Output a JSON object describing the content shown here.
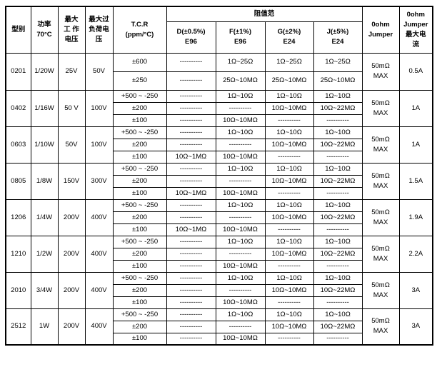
{
  "table": {
    "header": {
      "type": "型别",
      "power": "功率\n70°C",
      "max_working_voltage": "最大\n工 作\n电压",
      "max_overload_voltage": "最大过\n负荷电\n压",
      "tcr": "T.C.R\n(ppm/°C)",
      "resistance_range": "阻值范",
      "tol_d": "D(±0.5%)\nE96",
      "tol_f": "F(±1%)\nE96",
      "tol_g": "G(±2%)\nE24",
      "tol_j": "J(±5%)\nE24",
      "jumper": "0ohm\nJumper",
      "jumper_current": "0ohm\nJumper\n最大电\n流"
    },
    "models": [
      {
        "model": "0201",
        "power": "1/20W",
        "working_voltage": "25V",
        "overload_voltage": "50V",
        "jumper": "50mΩ\nMAX",
        "max_current": "0.5A",
        "rows": [
          {
            "tcr": "±600",
            "d": "----------",
            "f": "1Ω~25Ω",
            "g": "1Ω~25Ω",
            "j": "1Ω~25Ω"
          },
          {
            "tcr": "±250",
            "d": "----------",
            "f": "25Ω~10MΩ",
            "g": "25Ω~10MΩ",
            "j": "25Ω~10MΩ"
          }
        ]
      },
      {
        "model": "0402",
        "power": "1/16W",
        "working_voltage": "50 V",
        "overload_voltage": "100V",
        "jumper": "50mΩ\nMAX",
        "max_current": "1A",
        "rows": [
          {
            "tcr": "+500 ~ -250",
            "d": "----------",
            "f": "1Ω~10Ω",
            "g": "1Ω~10Ω",
            "j": "1Ω~10Ω"
          },
          {
            "tcr": "±200",
            "d": "----------",
            "f": "----------",
            "g": "10Ω~10MΩ",
            "j": "10Ω~22MΩ"
          },
          {
            "tcr": "±100",
            "d": "----------",
            "f": "10Ω~10MΩ",
            "g": "----------",
            "j": "----------"
          }
        ]
      },
      {
        "model": "0603",
        "power": "1/10W",
        "working_voltage": "50V",
        "overload_voltage": "100V",
        "jumper": "50mΩ\nMAX",
        "max_current": "1A",
        "rows": [
          {
            "tcr": "+500 ~ -250",
            "d": "----------",
            "f": "1Ω~10Ω",
            "g": "1Ω~10Ω",
            "j": "1Ω~10Ω"
          },
          {
            "tcr": "±200",
            "d": "----------",
            "f": "----------",
            "g": "10Ω~10MΩ",
            "j": "10Ω~22MΩ"
          },
          {
            "tcr": "±100",
            "d": "10Ω~1MΩ",
            "f": "10Ω~10MΩ",
            "g": "----------",
            "j": "----------"
          }
        ]
      },
      {
        "model": "0805",
        "power": "1/8W",
        "working_voltage": "150V",
        "overload_voltage": "300V",
        "jumper": "50mΩ\nMAX",
        "max_current": "1.5A",
        "rows": [
          {
            "tcr": "+500 ~ -250",
            "d": "----------",
            "f": "1Ω~10Ω",
            "g": "1Ω~10Ω",
            "j": "1Ω~10Ω"
          },
          {
            "tcr": "±200",
            "d": "----------",
            "f": "----------",
            "g": "10Ω~10MΩ",
            "j": "10Ω~22MΩ"
          },
          {
            "tcr": "±100",
            "d": "10Ω~1MΩ",
            "f": "10Ω~10MΩ",
            "g": "----------",
            "j": "----------"
          }
        ]
      },
      {
        "model": "1206",
        "power": "1/4W",
        "working_voltage": "200V",
        "overload_voltage": "400V",
        "jumper": "50mΩ\nMAX",
        "max_current": "1.9A",
        "rows": [
          {
            "tcr": "+500 ~ -250",
            "d": "----------",
            "f": "1Ω~10Ω",
            "g": "1Ω~10Ω",
            "j": "1Ω~10Ω"
          },
          {
            "tcr": "±200",
            "d": "----------",
            "f": "----------",
            "g": "10Ω~10MΩ",
            "j": "10Ω~22MΩ"
          },
          {
            "tcr": "±100",
            "d": "10Ω~1MΩ",
            "f": "10Ω~10MΩ",
            "g": "----------",
            "j": "----------"
          }
        ]
      },
      {
        "model": "1210",
        "power": "1/2W",
        "working_voltage": "200V",
        "overload_voltage": "400V",
        "jumper": "50mΩ\nMAX",
        "max_current": "2.2A",
        "rows": [
          {
            "tcr": "+500 ~ -250",
            "d": "----------",
            "f": "1Ω~10Ω",
            "g": "1Ω~10Ω",
            "j": "1Ω~10Ω"
          },
          {
            "tcr": "±200",
            "d": "----------",
            "f": "----------",
            "g": "10Ω~10MΩ",
            "j": "10Ω~22MΩ"
          },
          {
            "tcr": "±100",
            "d": "----------",
            "f": "10Ω~10MΩ",
            "g": "----------",
            "j": "----------"
          }
        ]
      },
      {
        "model": "2010",
        "power": "3/4W",
        "working_voltage": "200V",
        "overload_voltage": "400V",
        "jumper": "50mΩ\nMAX",
        "max_current": "3A",
        "rows": [
          {
            "tcr": "+500 ~ -250",
            "d": "----------",
            "f": "1Ω~10Ω",
            "g": "1Ω~10Ω",
            "j": "1Ω~10Ω"
          },
          {
            "tcr": "±200",
            "d": "----------",
            "f": "----------",
            "g": "10Ω~10MΩ",
            "j": "10Ω~22MΩ"
          },
          {
            "tcr": "±100",
            "d": "----------",
            "f": "10Ω~10MΩ",
            "g": "----------",
            "j": "----------"
          }
        ]
      },
      {
        "model": "2512",
        "power": "1W",
        "working_voltage": "200V",
        "overload_voltage": "400V",
        "jumper": "50mΩ\nMAX",
        "max_current": "3A",
        "rows": [
          {
            "tcr": "+500 ~ -250",
            "d": "----------",
            "f": "1Ω~10Ω",
            "g": "1Ω~10Ω",
            "j": "1Ω~10Ω"
          },
          {
            "tcr": "±200",
            "d": "----------",
            "f": "----------",
            "g": "10Ω~10MΩ",
            "j": "10Ω~22MΩ"
          },
          {
            "tcr": "±100",
            "d": "----------",
            "f": "10Ω~10MΩ",
            "g": "----------",
            "j": "----------"
          }
        ]
      }
    ]
  }
}
